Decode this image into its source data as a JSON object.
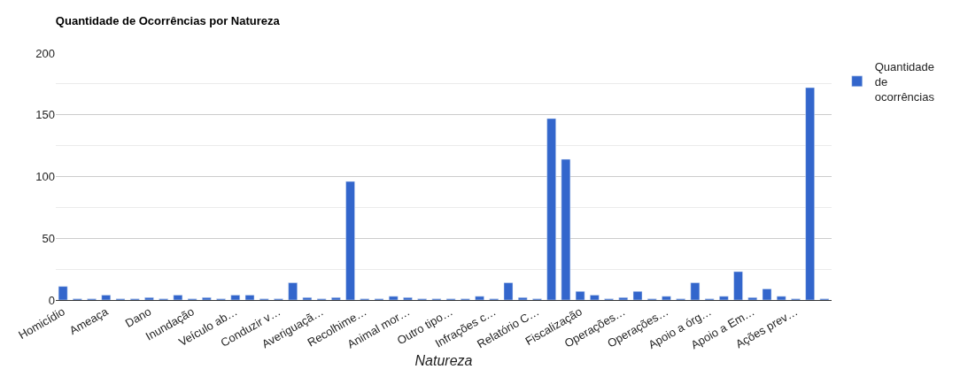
{
  "chart_data": {
    "type": "bar",
    "title": "Quantidade de Ocorrências por Natureza",
    "xlabel": "Natureza",
    "categories": [
      "Homicídio",
      null,
      null,
      "Ameaça",
      null,
      null,
      "Dano",
      null,
      null,
      "Inundação",
      null,
      null,
      "Veículo ab…",
      null,
      null,
      "Conduzir v…",
      null,
      null,
      "Averiguaçã…",
      null,
      null,
      "Recolhime…",
      null,
      null,
      "Animal mor…",
      null,
      null,
      "Outro tipo…",
      null,
      null,
      "Infrações c…",
      null,
      null,
      "Relatório C…",
      null,
      null,
      "Fiscalização",
      null,
      null,
      "Operações…",
      null,
      null,
      "Operações…",
      null,
      null,
      "Apoio a órg…",
      null,
      null,
      "Apoio a Em…",
      null,
      null,
      "Ações prev…",
      null,
      null
    ],
    "series": [
      {
        "name": "Quantidade de ocorrências",
        "color": "#3366cc",
        "values": [
          11,
          1,
          1,
          4,
          1,
          1,
          2,
          1,
          4,
          1,
          2,
          1,
          4,
          4,
          1,
          1,
          14,
          2,
          1,
          2,
          96,
          1,
          1,
          3,
          2,
          1,
          1,
          1,
          1,
          3,
          1,
          14,
          2,
          1,
          147,
          114,
          7,
          4,
          1,
          2,
          7,
          1,
          3,
          1,
          14,
          1,
          3,
          23,
          2,
          9,
          3,
          1,
          172,
          1
        ]
      }
    ],
    "ylim": [
      0,
      200
    ],
    "yticks": [
      0,
      50,
      100,
      150,
      200
    ],
    "grid": "y",
    "legend": "top right"
  }
}
